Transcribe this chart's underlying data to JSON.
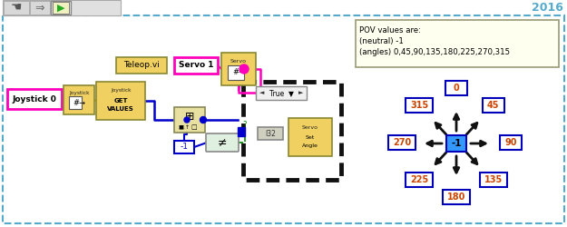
{
  "bg_color": "#ffffff",
  "outer_bg": "#f5f5f5",
  "border_color": "#55aacc",
  "title_year": "2016",
  "pov_text_line1": "POV values are:",
  "pov_text_line2": "(neutral) -1",
  "pov_text_line3": "(angles) 0,45,90,135,180,225,270,315",
  "pov_box_color": "#fffff0",
  "angles": [
    0,
    45,
    90,
    135,
    180,
    225,
    270,
    315
  ],
  "center_label": "-1",
  "center_box_color": "#3399ff",
  "center_text_color": "#000000",
  "label_edge_color": "#0000bb",
  "label_text_color": "#cc4400",
  "arrow_color": "#111111",
  "joystick0_label": "Joystick 0",
  "teleop_label": "Teleop.vi",
  "servo1_label": "Servo 1",
  "node_yellow": "#f0d060",
  "node_yellow_edge": "#888833",
  "node_border_pink": "#ff00bb",
  "node_border_blue": "#0000cc",
  "wire_blue": "#0000cc",
  "wire_pink": "#ff00bb",
  "wire_yellow": "#ccaa00",
  "wire_green": "#008800",
  "case_edge": "#111111",
  "true_bg": "#f0f0f0",
  "bundle_bg": "#e8e0a0",
  "neq_bg": "#e0f0e0"
}
